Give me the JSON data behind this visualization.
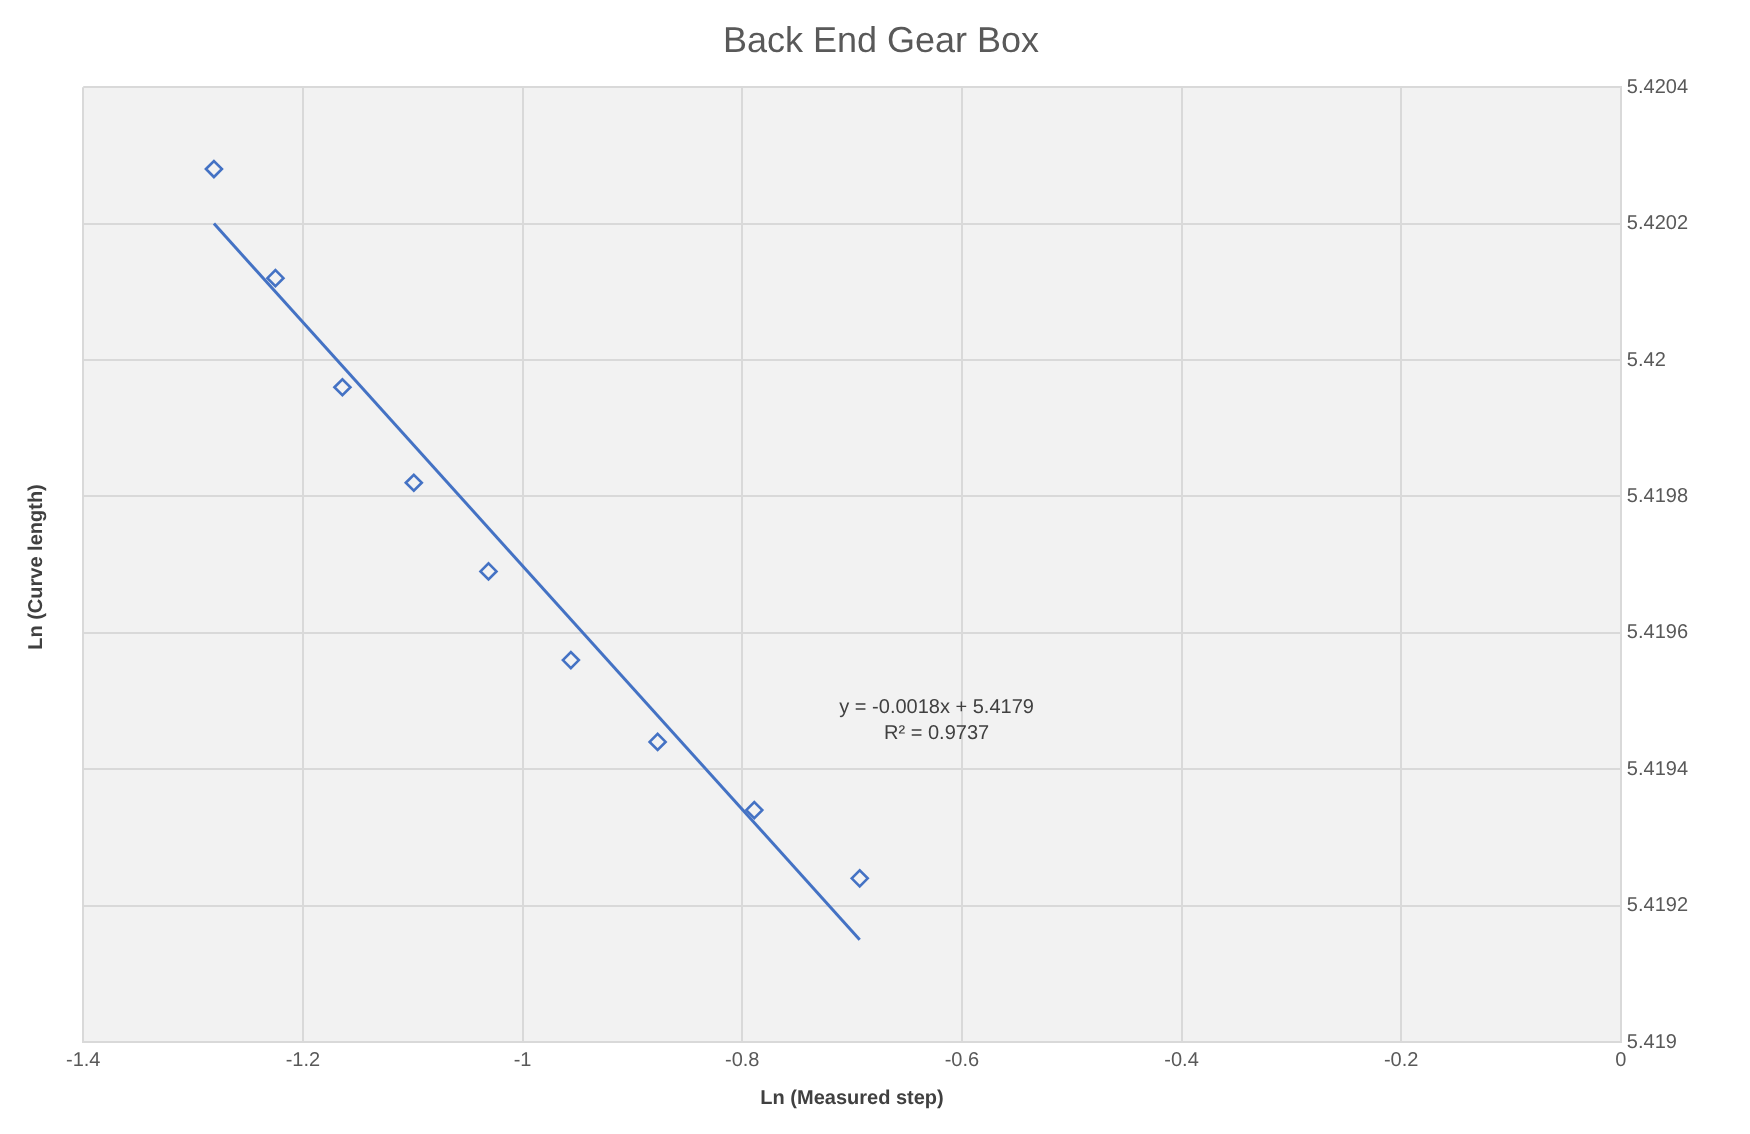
{
  "chart_data": {
    "type": "scatter",
    "title": "Back End Gear Box",
    "xlabel": "Ln (Measured step)",
    "ylabel": "Ln (Curve length)",
    "series": [
      {
        "color": "#4472c4",
        "marker": "diamond",
        "x": [
          -1.281,
          -1.225,
          -1.164,
          -1.099,
          -1.031,
          -0.956,
          -0.877,
          -0.789,
          -0.693
        ],
        "values": [
          5.42028,
          5.42012,
          5.41996,
          5.41982,
          5.41969,
          5.41956,
          5.41944,
          5.41934,
          5.41924
        ]
      },
      {
        "type": "line",
        "color": "#4472c4",
        "marker": "none",
        "x": [
          -1.281,
          -0.693
        ],
        "values": [
          5.4202,
          5.41915
        ]
      }
    ],
    "annotations": [
      "y = -0.0018x + 5.4179",
      "R² = 0.9737"
    ],
    "xlim": [
      -1.4,
      0
    ],
    "xticks": [
      -1.4,
      -1.2,
      -1,
      -0.8,
      -0.6,
      -0.4,
      -0.2,
      0
    ],
    "ylim": [
      5.419,
      5.4204
    ],
    "yticks": [
      5.419,
      5.4192,
      5.4194,
      5.4196,
      5.4198,
      5.42,
      5.4202,
      5.4204
    ],
    "grid": true,
    "legend": false
  }
}
